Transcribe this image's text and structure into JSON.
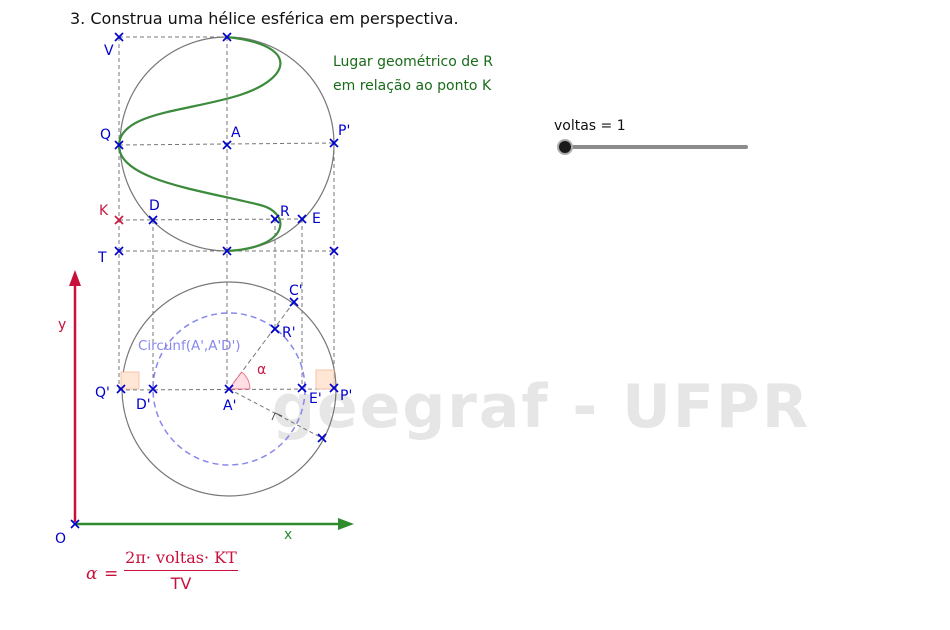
{
  "title": "3.  Construa uma hélice esférica em perspectiva.",
  "locus_label": {
    "line1": "Lugar geométrico de R",
    "line2": "em relação ao ponto K"
  },
  "slider": {
    "label": "voltas = 1",
    "value": 1
  },
  "watermark": "geegraf - UFPR",
  "circle_label": "Circunf(A',A'D')",
  "angle_label": "α",
  "axes": {
    "x": "x",
    "y": "y",
    "origin": "O"
  },
  "points": {
    "V": "V",
    "Q": "Q",
    "A": "A",
    "P_prime": "P'",
    "K": "K",
    "D": "D",
    "R": "R",
    "E": "E",
    "T": "T",
    "C_prime": "C'",
    "R_prime": "R'",
    "Q_prime": "Q'",
    "D_prime": "D'",
    "A_prime": "A'",
    "E_prime": "E'",
    "P_prime_bottom": "P'"
  },
  "formula": {
    "lhs": "α",
    "eq": "=",
    "numerator": "2π· voltas· KT",
    "denominator": "TV"
  },
  "colors": {
    "helix": "#3c8a3c",
    "points": "#0000cc",
    "k_point": "#cc1a44",
    "axis_y": "#c8103c",
    "axis_x": "#2e8b2e",
    "dashed_circle": "#8888ee"
  }
}
